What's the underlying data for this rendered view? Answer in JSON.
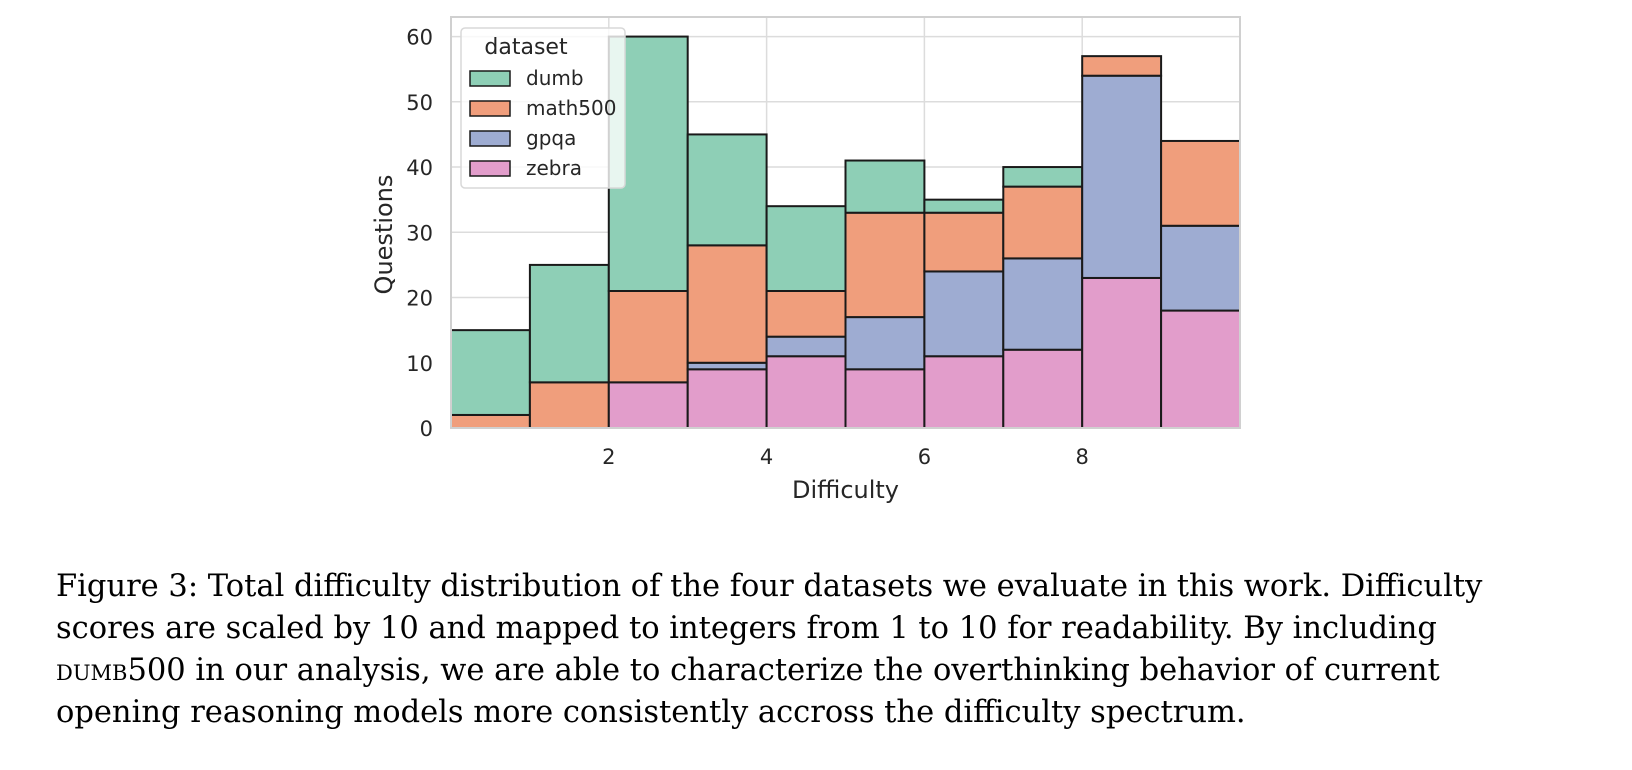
{
  "chart_data": {
    "type": "bar",
    "stacked": true,
    "title": "",
    "xlabel": "Difficulty",
    "ylabel": "Questions",
    "xlim": [
      0,
      10
    ],
    "ylim": [
      0,
      63
    ],
    "xticks": [
      2,
      4,
      6,
      8
    ],
    "yticks": [
      0,
      10,
      20,
      30,
      40,
      50,
      60
    ],
    "grid": true,
    "legend": {
      "title": "dataset",
      "placement": "top-left",
      "order": [
        "dumb",
        "math500",
        "gpqa",
        "zebra"
      ]
    },
    "bins": [
      [
        0,
        1
      ],
      [
        1,
        2
      ],
      [
        2,
        3
      ],
      [
        3,
        4
      ],
      [
        4,
        5
      ],
      [
        5,
        6
      ],
      [
        6,
        7
      ],
      [
        7,
        8
      ],
      [
        8,
        9
      ],
      [
        9,
        10
      ]
    ],
    "stack_order": [
      "zebra",
      "gpqa",
      "math500",
      "dumb"
    ],
    "series": [
      {
        "name": "dumb",
        "color": "#8ecfb6",
        "values": [
          13,
          18,
          39,
          17,
          13,
          8,
          2,
          3,
          0,
          0
        ]
      },
      {
        "name": "math500",
        "color": "#f09e7c",
        "values": [
          2,
          7,
          14,
          18,
          7,
          16,
          9,
          11,
          3,
          13
        ]
      },
      {
        "name": "gpqa",
        "color": "#9eacd2",
        "values": [
          0,
          0,
          0,
          1,
          3,
          8,
          13,
          14,
          31,
          13
        ]
      },
      {
        "name": "zebra",
        "color": "#e29dcb",
        "values": [
          0,
          0,
          7,
          9,
          11,
          9,
          11,
          12,
          23,
          18
        ]
      }
    ]
  },
  "caption": {
    "line1": "Figure 3: Total difficulty distribution of the four datasets we evaluate in this work. Difficulty",
    "line2": "scores are scaled by 10 and mapped to integers from 1 to 10 for readability. By including",
    "line3_smallcaps": "DUMB",
    "line3_rest": "500 in our analysis, we are able to characterize the overthinking behavior of current",
    "line4": "opening reasoning models more consistently accross the difficulty spectrum."
  }
}
